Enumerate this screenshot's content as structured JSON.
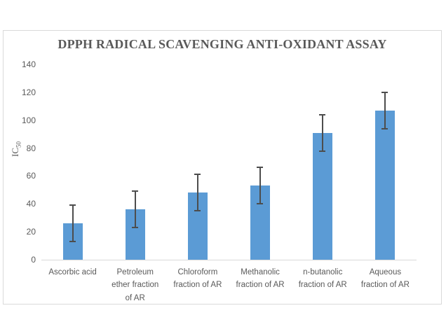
{
  "chart_data": {
    "type": "bar",
    "title": "DPPH RADICAL SCAVENGING ANTI-OXIDANT ASSAY",
    "ylabel": "IC",
    "ylabel_subscript": "50",
    "xlabel": "",
    "categories": [
      "Ascorbic acid",
      "Petroleum ether fraction of AR",
      "Chloroform fraction of AR",
      "Methanolic fraction of AR",
      "n-butanolic fraction of AR",
      "Aqueous fraction of AR"
    ],
    "category_display_lines": [
      [
        "Ascorbic acid"
      ],
      [
        "Petroleum",
        "ether fraction",
        "of AR"
      ],
      [
        "Chloroform",
        "fraction of AR"
      ],
      [
        "Methanolic",
        "fraction of AR"
      ],
      [
        "n-butanolic",
        "fraction of AR"
      ],
      [
        "Aqueous",
        "fraction of AR"
      ]
    ],
    "values": [
      26,
      36,
      48,
      53,
      91,
      107
    ],
    "error_bars": [
      13,
      13,
      13,
      13,
      13,
      13
    ],
    "ylim": [
      0,
      140
    ],
    "yticks": [
      0,
      20,
      40,
      60,
      80,
      100,
      120,
      140
    ],
    "grid": false,
    "legend": false,
    "colors": {
      "bar": "#5b9bd5",
      "error_bar": "#4d4d4d",
      "text": "#595959",
      "title_text": "#595959",
      "axis_line": "#d9d9d9",
      "chart_border": "#d9d9d9",
      "background": "#ffffff"
    }
  }
}
